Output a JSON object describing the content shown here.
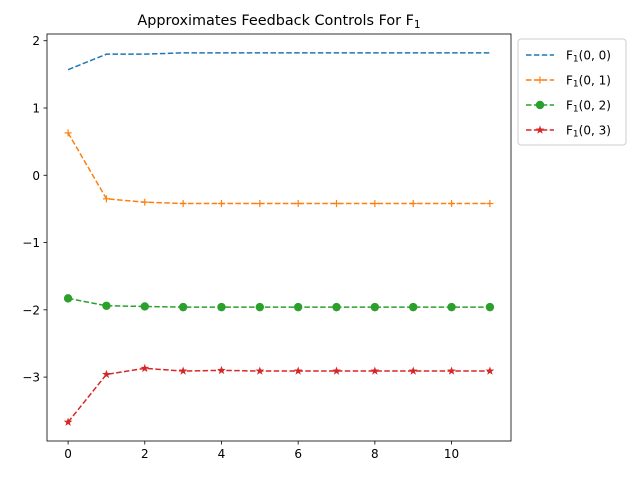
{
  "chart_data": {
    "type": "line",
    "title": "Approximates Feedback Controls For F",
    "title_subscript": "1",
    "x": [
      0,
      1,
      2,
      3,
      4,
      5,
      6,
      7,
      8,
      9,
      10,
      11
    ],
    "xlim": [
      -0.55,
      11.55
    ],
    "ylim": [
      -3.95,
      2.1
    ],
    "xticks": [
      0,
      2,
      4,
      6,
      8,
      10
    ],
    "yticks": [
      2,
      1,
      0,
      -1,
      -2,
      -3
    ],
    "xtick_labels": [
      "0",
      "2",
      "4",
      "6",
      "8",
      "10"
    ],
    "ytick_labels": [
      "2",
      "1",
      "0",
      "−1",
      "−2",
      "−3"
    ],
    "legend_position": "outside-upper-right",
    "grid": false,
    "series": [
      {
        "name_main": "F",
        "name_sub": "1",
        "name_args": "(0, 0)",
        "color": "#1f77b4",
        "marker": "none",
        "values": [
          1.57,
          1.8,
          1.8,
          1.82,
          1.82,
          1.82,
          1.82,
          1.82,
          1.82,
          1.82,
          1.82,
          1.82
        ]
      },
      {
        "name_main": "F",
        "name_sub": "1",
        "name_args": "(0, 1)",
        "color": "#ff7f0e",
        "marker": "plus",
        "values": [
          0.63,
          -0.35,
          -0.4,
          -0.42,
          -0.42,
          -0.42,
          -0.42,
          -0.42,
          -0.42,
          -0.42,
          -0.42,
          -0.42
        ]
      },
      {
        "name_main": "F",
        "name_sub": "1",
        "name_args": "(0, 2)",
        "color": "#2ca02c",
        "marker": "circle",
        "values": [
          -1.83,
          -1.94,
          -1.95,
          -1.96,
          -1.96,
          -1.96,
          -1.96,
          -1.96,
          -1.96,
          -1.96,
          -1.96,
          -1.96
        ]
      },
      {
        "name_main": "F",
        "name_sub": "1",
        "name_args": "(0, 3)",
        "color": "#d62728",
        "marker": "star",
        "values": [
          -3.67,
          -2.96,
          -2.87,
          -2.91,
          -2.9,
          -2.91,
          -2.91,
          -2.91,
          -2.91,
          -2.91,
          -2.91,
          -2.91
        ]
      }
    ]
  }
}
